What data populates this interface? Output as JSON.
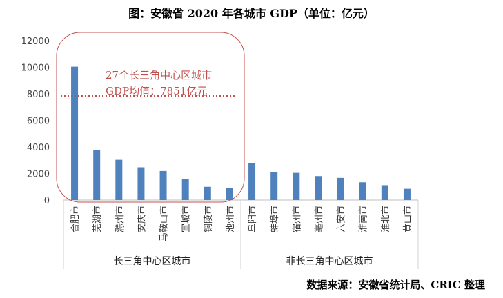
{
  "title": "图：安徽省 2020 年各城市 GDP（单位：亿元）",
  "source": "数据来源：安徽省统计局、CRIC 整理",
  "colors": {
    "bar": "#4f81bd",
    "annotation": "#c0504d",
    "frame": "#c0504d"
  },
  "chart_data": {
    "type": "bar",
    "categories": [
      "合肥市",
      "芜湖市",
      "滁州市",
      "安庆市",
      "马鞍山市",
      "宣城市",
      "铜陵市",
      "池州市",
      "阜阳市",
      "蚌埠市",
      "宿州市",
      "亳州市",
      "六安市",
      "淮南市",
      "淮北市",
      "黄山市"
    ],
    "values": [
      10046,
      3753,
      3032,
      2468,
      2187,
      1608,
      1000,
      920,
      2805,
      2083,
      2045,
      1806,
      1670,
      1337,
      1120,
      850
    ],
    "groups": [
      {
        "label": "长三角中心区城市",
        "count": 8
      },
      {
        "label": "非长三角中心区城市",
        "count": 8
      }
    ],
    "yticks": [
      0,
      2000,
      4000,
      6000,
      8000,
      10000,
      12000
    ],
    "ylim": [
      0,
      12000
    ],
    "reference_line": {
      "value": 7851,
      "style": "dotted"
    },
    "annotation": {
      "line1": "27个长三角中心区城市",
      "line2": "GDP均值：7851亿元"
    },
    "grid": false
  }
}
